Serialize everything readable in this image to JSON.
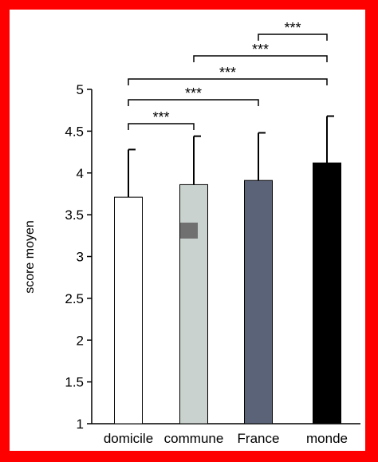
{
  "chart_data": {
    "type": "bar",
    "title": "",
    "xlabel": "",
    "ylabel": "score moyen",
    "ylim": [
      1,
      5
    ],
    "yticks": [
      "1",
      "1.5",
      "2",
      "2.5",
      "3",
      "3.5",
      "4",
      "4.5",
      "5"
    ],
    "categories": [
      "domicile",
      "commune",
      "France",
      "monde"
    ],
    "values": [
      3.71,
      3.86,
      3.91,
      4.12
    ],
    "errors": [
      0.57,
      0.58,
      0.57,
      0.56
    ],
    "colors": [
      "#ffffff",
      "#c9d2ce",
      "#5a6378",
      "#000000"
    ],
    "grid": false,
    "legend": "none",
    "significance": [
      {
        "from": 0,
        "to": 1,
        "label": "***"
      },
      {
        "from": 0,
        "to": 2,
        "label": "***"
      },
      {
        "from": 0,
        "to": 3,
        "label": "***"
      },
      {
        "from": 1,
        "to": 3,
        "label": "***"
      },
      {
        "from": 2,
        "to": 3,
        "label": "***"
      }
    ]
  }
}
